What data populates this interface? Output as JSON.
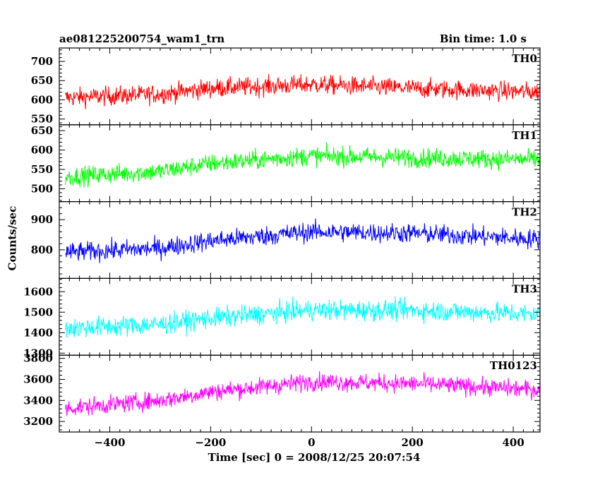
{
  "title_left": "ae081225200754_wam1_trn",
  "title_right": "Bin time: 1.0 s",
  "ylabel": "Counts/sec",
  "xlabel": "Time [sec] 0 = 2008/12/25 20:07:54",
  "chart_data": {
    "type": "line",
    "x_range": [
      -500,
      453
    ],
    "x_ticks": [
      -400,
      -200,
      0,
      200,
      400
    ],
    "x_tick_labels": [
      "−400",
      "−200",
      "0",
      "200",
      "400"
    ],
    "panels": [
      {
        "name": "TH0",
        "color": "#ff0000",
        "ylim": [
          535,
          735
        ],
        "y_ticks": [
          550,
          600,
          650,
          700
        ],
        "trend": [
          [
            -500,
            605
          ],
          [
            -300,
            615
          ],
          [
            -200,
            630
          ],
          [
            0,
            640
          ],
          [
            200,
            630
          ],
          [
            453,
            620
          ]
        ],
        "amplitude": 32
      },
      {
        "name": "TH1",
        "color": "#00ff00",
        "ylim": [
          467,
          665
        ],
        "y_ticks": [
          500,
          550,
          600,
          650
        ],
        "trend": [
          [
            -500,
            530
          ],
          [
            -300,
            545
          ],
          [
            -200,
            565
          ],
          [
            0,
            585
          ],
          [
            200,
            580
          ],
          [
            453,
            575
          ]
        ],
        "amplitude": 32
      },
      {
        "name": "TH2",
        "color": "#0000ff",
        "ylim": [
          705,
          960
        ],
        "y_ticks": [
          800,
          900
        ],
        "trend": [
          [
            -500,
            790
          ],
          [
            -300,
            805
          ],
          [
            -200,
            830
          ],
          [
            0,
            860
          ],
          [
            200,
            855
          ],
          [
            453,
            835
          ]
        ],
        "amplitude": 42
      },
      {
        "name": "TH3",
        "color": "#00ffff",
        "ylim": [
          1290,
          1665
        ],
        "y_ticks": [
          1300,
          1400,
          1500,
          1600
        ],
        "trend": [
          [
            -500,
            1420
          ],
          [
            -300,
            1440
          ],
          [
            -200,
            1470
          ],
          [
            0,
            1510
          ],
          [
            200,
            1510
          ],
          [
            453,
            1490
          ]
        ],
        "amplitude": 65
      },
      {
        "name": "TH0123",
        "color": "#ff00ff",
        "ylim": [
          3100,
          3830
        ],
        "y_ticks": [
          3200,
          3400,
          3600,
          3800
        ],
        "trend": [
          [
            -500,
            3320
          ],
          [
            -300,
            3400
          ],
          [
            -200,
            3480
          ],
          [
            0,
            3580
          ],
          [
            200,
            3560
          ],
          [
            453,
            3500
          ]
        ],
        "amplitude": 110
      }
    ]
  }
}
